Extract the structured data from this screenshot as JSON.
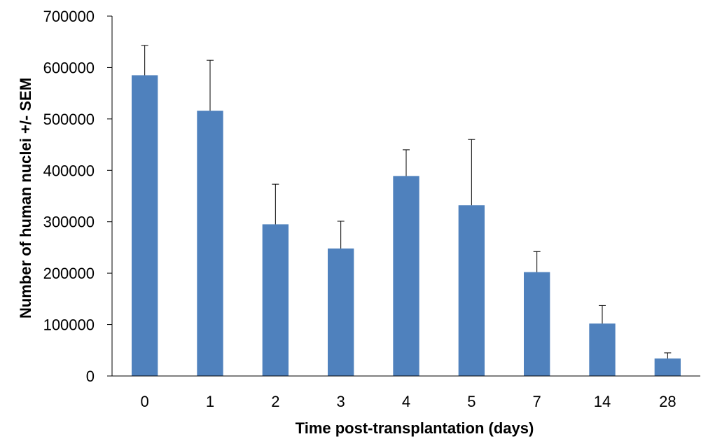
{
  "chart_data": {
    "type": "bar",
    "title": "",
    "xlabel": "Time post-transplantation (days)",
    "ylabel": "Number of human nuclei +/- SEM",
    "categories": [
      "0",
      "1",
      "2",
      "3",
      "4",
      "5",
      "7",
      "14",
      "28"
    ],
    "values": [
      585000,
      516000,
      295000,
      248000,
      389000,
      332000,
      202000,
      102000,
      34000
    ],
    "error_upper": [
      643000,
      614000,
      373000,
      301000,
      440000,
      460000,
      242000,
      137000,
      45000
    ],
    "yticks": [
      0,
      100000,
      200000,
      300000,
      400000,
      500000,
      600000,
      700000
    ],
    "ytick_labels": [
      "0",
      "100000",
      "200000",
      "300000",
      "400000",
      "500000",
      "600000",
      "700000"
    ],
    "ylim": [
      0,
      700000
    ],
    "grid": false,
    "legend": "none",
    "bar_color": "#4f81bd"
  }
}
